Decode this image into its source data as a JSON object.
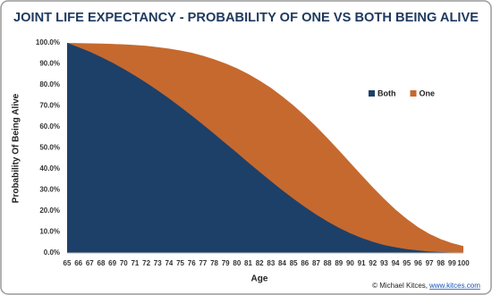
{
  "chart_data": {
    "type": "area",
    "title": "JOINT LIFE EXPECTANCY - PROBABILITY OF ONE VS BOTH BEING ALIVE",
    "x_label": "Age",
    "y_label": "Probability Of Being Alive",
    "source": "© Michael Kitces,",
    "source_link": "www.kitces.com",
    "categories": [
      65,
      66,
      67,
      68,
      69,
      70,
      71,
      72,
      73,
      74,
      75,
      76,
      77,
      78,
      79,
      80,
      81,
      82,
      83,
      84,
      85,
      86,
      87,
      88,
      89,
      90,
      91,
      92,
      93,
      94,
      95,
      96,
      97,
      98,
      99,
      100
    ],
    "series": [
      {
        "name": "Both",
        "color": "#1d4068",
        "values": [
          100,
          98.0,
          95.8,
          93.3,
          90.6,
          87.6,
          84.4,
          81.0,
          77.4,
          73.6,
          69.6,
          65.4,
          61.1,
          56.7,
          52.2,
          47.7,
          43.1,
          38.6,
          34.2,
          29.9,
          25.8,
          21.9,
          18.3,
          15.0,
          12.0,
          9.4,
          7.2,
          5.3,
          3.8,
          2.7,
          1.8,
          1.2,
          0.7,
          0.4,
          0.2,
          0.1
        ]
      },
      {
        "name": "One",
        "color": "#c6692f",
        "values": [
          100,
          99.9,
          99.8,
          99.7,
          99.5,
          99.3,
          99.0,
          98.6,
          98.0,
          97.3,
          96.4,
          95.3,
          93.9,
          92.2,
          90.2,
          87.9,
          85.2,
          82.1,
          78.6,
          74.6,
          70.2,
          65.4,
          60.2,
          54.7,
          48.9,
          43.0,
          37.1,
          31.3,
          25.8,
          20.7,
          16.2,
          12.3,
          9.1,
          6.6,
          4.7,
          3.3
        ]
      }
    ],
    "ylim": [
      0,
      100
    ],
    "yticks": [
      {
        "value": 0,
        "label": "0.0%"
      },
      {
        "value": 10,
        "label": "10.0%"
      },
      {
        "value": 20,
        "label": "20.0%"
      },
      {
        "value": 30,
        "label": "30.0%"
      },
      {
        "value": 40,
        "label": "40.0%"
      },
      {
        "value": 50,
        "label": "50.0%"
      },
      {
        "value": 60,
        "label": "60.0%"
      },
      {
        "value": 70,
        "label": "70.0%"
      },
      {
        "value": 80,
        "label": "80.0%"
      },
      {
        "value": 90,
        "label": "90.0%"
      },
      {
        "value": 100,
        "label": "100.0%"
      }
    ],
    "grid": false,
    "legend": "upper right"
  }
}
